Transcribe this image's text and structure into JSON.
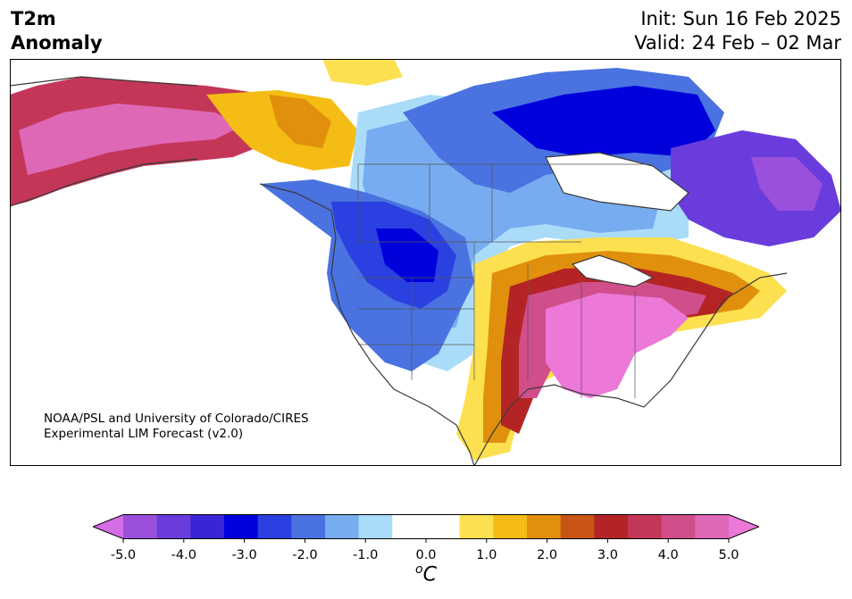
{
  "header": {
    "title_line1": "T2m",
    "title_line2": "Anomaly",
    "init": "Init: Sun 16 Feb 2025",
    "valid": "Valid: 24 Feb – 02 Mar"
  },
  "credit": {
    "line1": "NOAA/PSL and University of Colorado/CIRES",
    "line2": "Experimental LIM Forecast (v2.0)"
  },
  "colorbar": {
    "unit_symbol": "o",
    "unit_letter": "C",
    "ticks": [
      "-5.0",
      "-4.0",
      "-3.0",
      "-2.0",
      "-1.0",
      "0.0",
      "1.0",
      "2.0",
      "3.0",
      "4.0",
      "5.0"
    ],
    "colors": [
      "#d66ce6",
      "#9a50dc",
      "#6a3cdc",
      "#3a25d6",
      "#0000dc",
      "#2a40e0",
      "#4a72e0",
      "#78acf0",
      "#aadcfa",
      "#ffffff",
      "#ffffff",
      "#fce050",
      "#f4bc14",
      "#e0900c",
      "#c85416",
      "#b42424",
      "#c43658",
      "#d04e8a",
      "#de68b6",
      "#ec78d8"
    ]
  }
}
